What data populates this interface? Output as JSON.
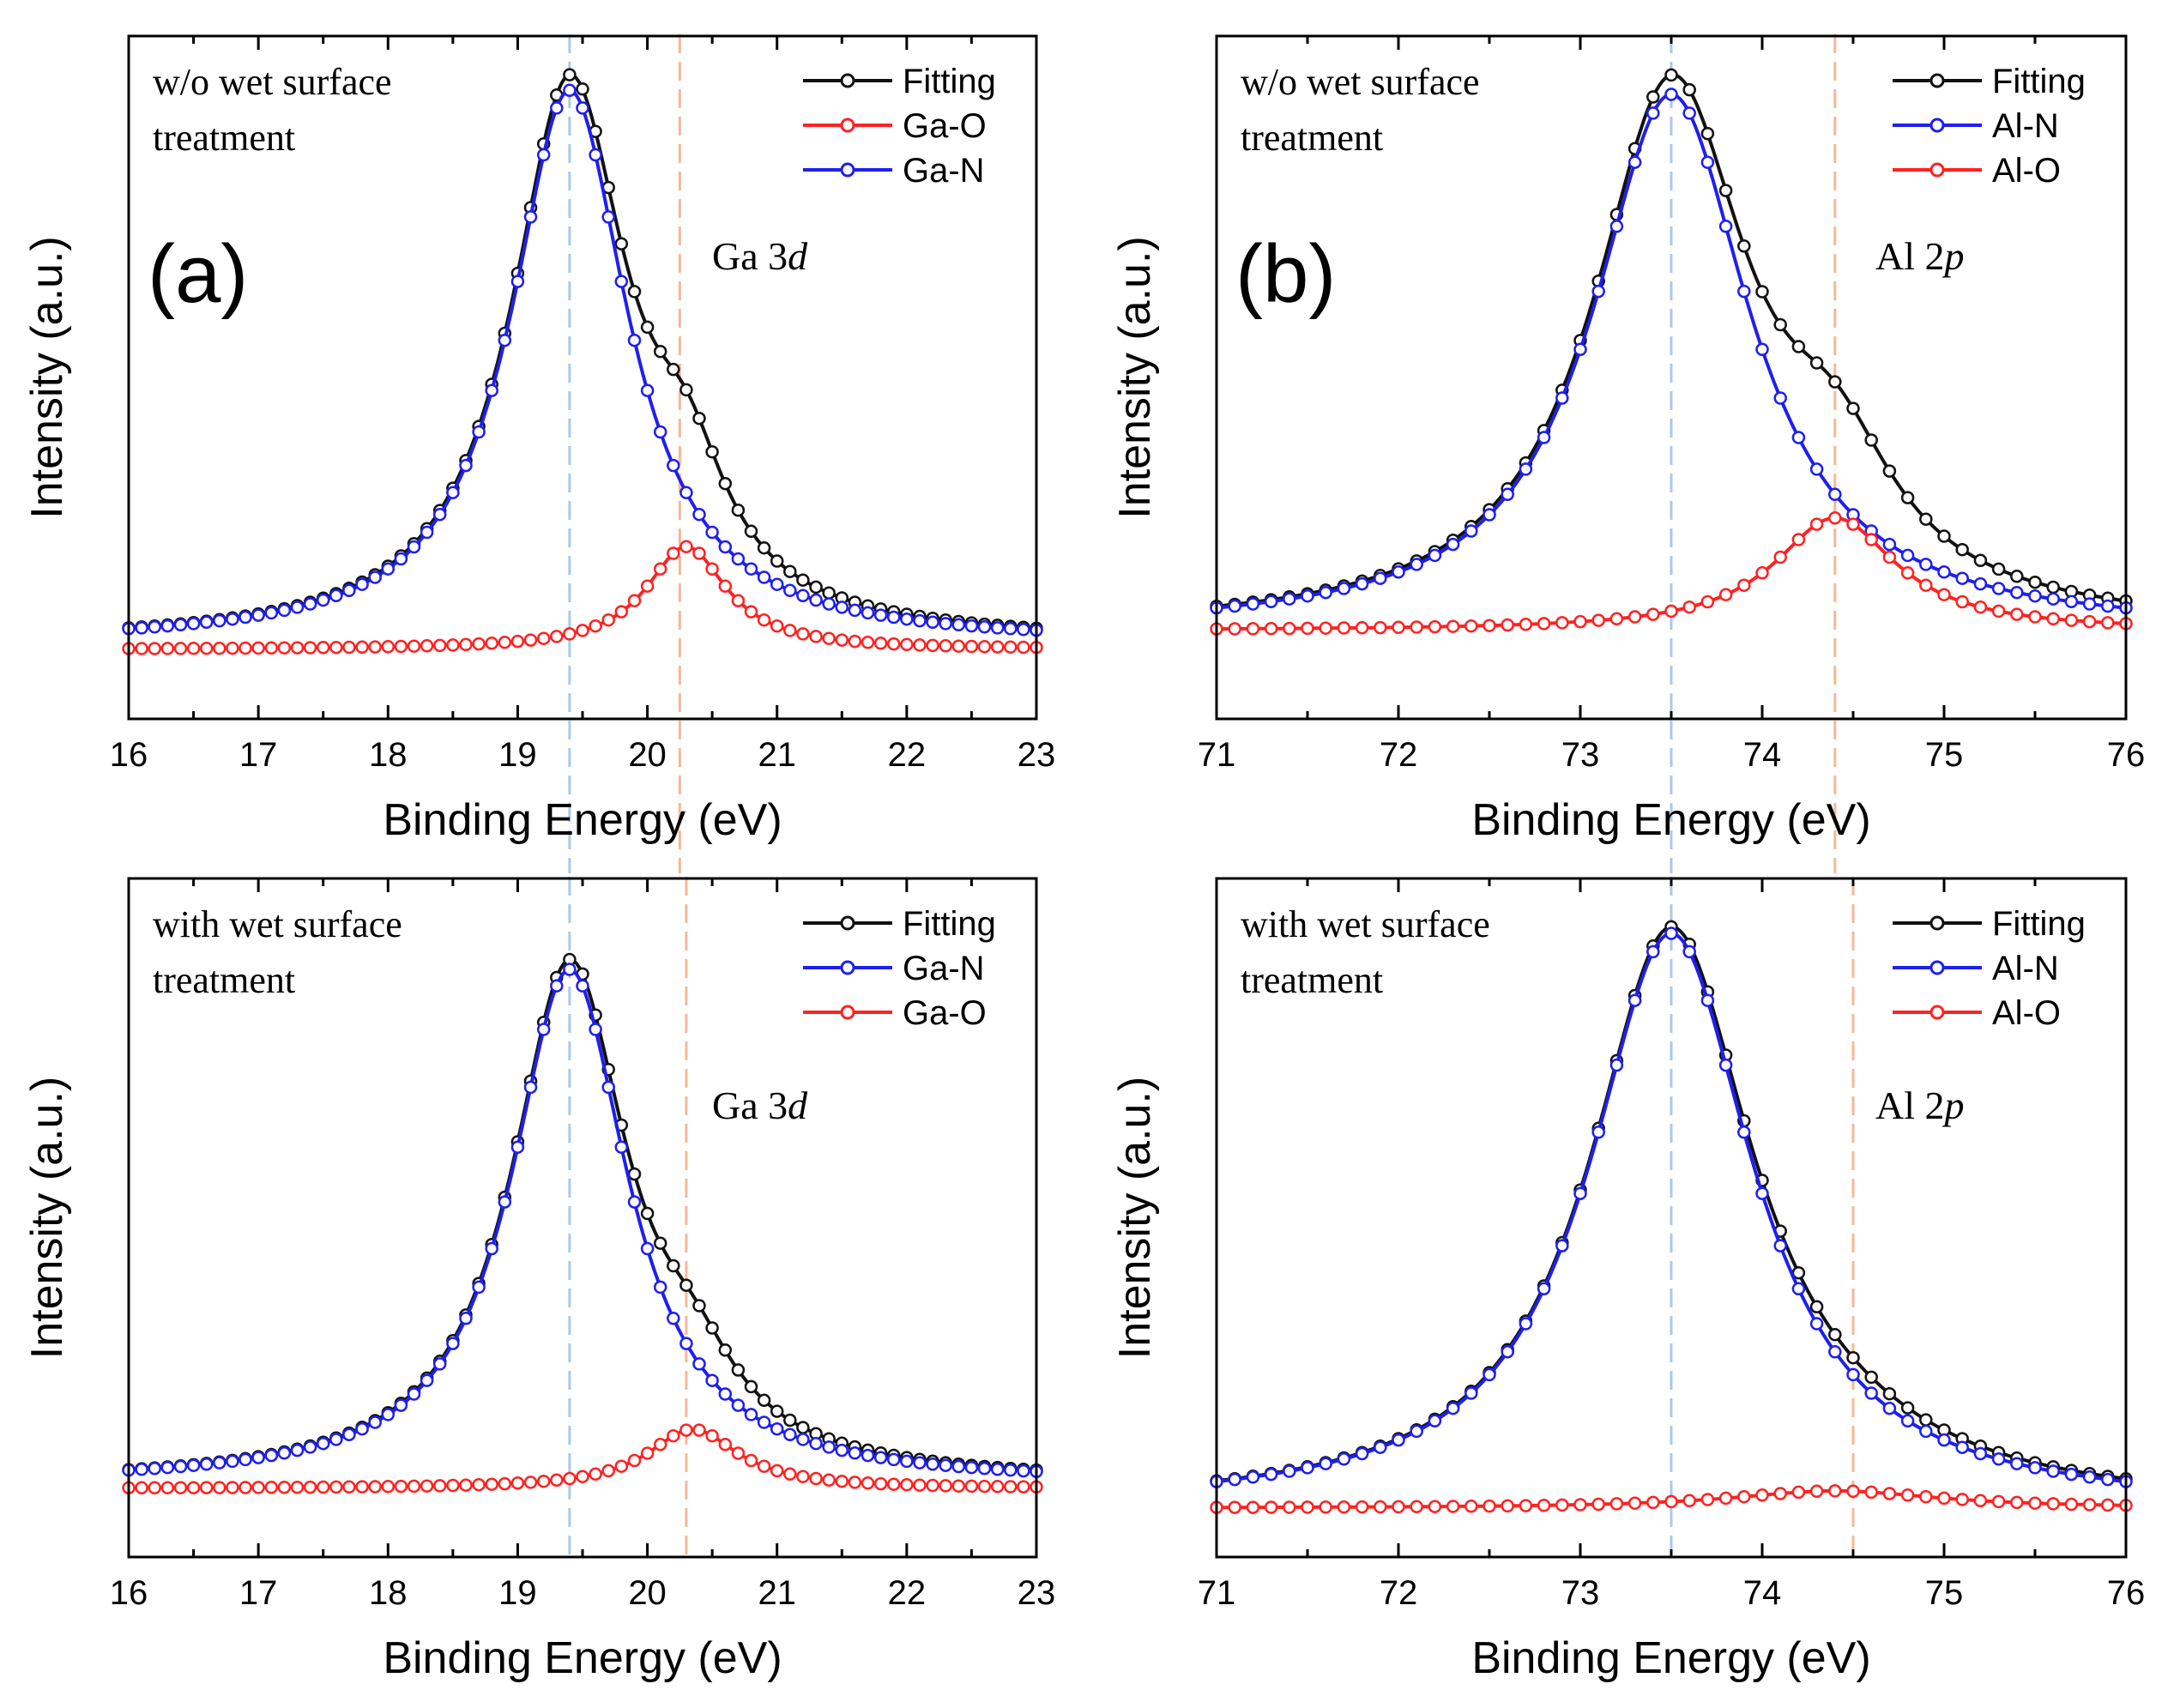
{
  "figure": {
    "x_axis_title": "Binding Energy (eV)",
    "y_axis_title": "Intensity (a.u.)"
  },
  "chart_data": [
    {
      "type": "line",
      "id": "ga-top",
      "panel_label": "(a)",
      "condition_lines": [
        "w/o wet surface",
        "treatment"
      ],
      "region_label": {
        "element": "Ga",
        "level": "3",
        "orbital": "d"
      },
      "xlabel": "Binding Energy (eV)",
      "ylabel": "Intensity (a.u.)",
      "xlim": [
        16,
        23
      ],
      "xticks": [
        "16",
        "17",
        "18",
        "19",
        "20",
        "21",
        "22",
        "23"
      ],
      "ylim": [
        0,
        1.15
      ],
      "yticks_shown": false,
      "legend_position": "top-right",
      "reference_lines": [
        {
          "x": 19.4,
          "color": "#a8c8ee"
        },
        {
          "x": 20.25,
          "color": "#f5b896"
        }
      ],
      "series": [
        {
          "name": "Fitting",
          "color": "#111111",
          "role": "sum",
          "legend_order": 0
        },
        {
          "name": "Ga-O",
          "color": "#ff2222",
          "center": 20.3,
          "amplitude": 0.186,
          "fwhm": 0.76,
          "baseline": 0.0,
          "legend_order": 1
        },
        {
          "name": "Ga-N",
          "color": "#1f1fee",
          "center": 19.4,
          "amplitude": 1.0,
          "fwhm": 1.1,
          "baseline": 0.012,
          "legend_order": 2
        }
      ]
    },
    {
      "type": "line",
      "id": "al-top",
      "panel_label": "(b)",
      "condition_lines": [
        "w/o wet surface",
        "treatment"
      ],
      "region_label": {
        "element": "Al",
        "level": "2",
        "orbital": "p"
      },
      "xlabel": "Binding Energy (eV)",
      "ylabel": "Intensity (a.u.)",
      "xlim": [
        71,
        76
      ],
      "xticks": [
        "71",
        "72",
        "73",
        "74",
        "75",
        "76"
      ],
      "ylim": [
        0,
        1.15
      ],
      "yticks_shown": false,
      "legend_position": "top-right",
      "reference_lines": [
        {
          "x": 73.5,
          "color": "#a8c8ee"
        },
        {
          "x": 74.4,
          "color": "#f5b896"
        }
      ],
      "series": [
        {
          "name": "Fitting",
          "color": "#111111",
          "role": "sum",
          "legend_order": 0
        },
        {
          "name": "Al-N",
          "color": "#1f1fee",
          "center": 73.5,
          "amplitude": 1.0,
          "fwhm": 1.05,
          "baseline": 0.0,
          "legend_order": 1
        },
        {
          "name": "Al-O",
          "color": "#ff2222",
          "center": 74.4,
          "amplitude": 0.21,
          "fwhm": 0.82,
          "baseline": 0.0,
          "legend_order": 2
        }
      ]
    },
    {
      "type": "line",
      "id": "ga-bottom",
      "panel_label": "",
      "condition_lines": [
        "with wet surface",
        "treatment"
      ],
      "region_label": {
        "element": "Ga",
        "level": "3",
        "orbital": "d"
      },
      "xlabel": "Binding Energy (eV)",
      "ylabel": "Intensity (a.u.)",
      "xlim": [
        16,
        23
      ],
      "xticks": [
        "16",
        "17",
        "18",
        "19",
        "20",
        "21",
        "22",
        "23"
      ],
      "ylim": [
        0,
        1.15
      ],
      "yticks_shown": false,
      "legend_position": "top-right",
      "reference_lines": [
        {
          "x": 19.4,
          "color": "#a8c8ee"
        },
        {
          "x": 20.3,
          "color": "#f5b896"
        }
      ],
      "series": [
        {
          "name": "Fitting",
          "color": "#111111",
          "role": "sum",
          "legend_order": 0
        },
        {
          "name": "Ga-N",
          "color": "#1f1fee",
          "center": 19.4,
          "amplitude": 1.0,
          "fwhm": 1.1,
          "baseline": 0.01,
          "legend_order": 1
        },
        {
          "name": "Ga-O",
          "color": "#ff2222",
          "center": 20.35,
          "amplitude": 0.115,
          "fwhm": 0.85,
          "baseline": 0.0,
          "legend_order": 2
        }
      ]
    },
    {
      "type": "line",
      "id": "al-bottom",
      "panel_label": "",
      "condition_lines": [
        "with wet surface",
        "treatment"
      ],
      "region_label": {
        "element": "Al",
        "level": "2",
        "orbital": "p"
      },
      "xlabel": "Binding Energy (eV)",
      "ylabel": "Intensity (a.u.)",
      "xlim": [
        71,
        76
      ],
      "xticks": [
        "71",
        "72",
        "73",
        "74",
        "75",
        "76"
      ],
      "ylim": [
        0,
        1.15
      ],
      "yticks_shown": false,
      "legend_position": "top-right",
      "reference_lines": [
        {
          "x": 73.5,
          "color": "#a8c8ee"
        },
        {
          "x": 74.5,
          "color": "#f5b896"
        }
      ],
      "series": [
        {
          "name": "Fitting",
          "color": "#111111",
          "role": "sum",
          "legend_order": 0
        },
        {
          "name": "Al-N",
          "color": "#1f1fee",
          "center": 73.5,
          "amplitude": 1.0,
          "fwhm": 1.1,
          "baseline": 0.0,
          "legend_order": 1
        },
        {
          "name": "Al-O",
          "color": "#ff2222",
          "center": 74.4,
          "amplitude": 0.03,
          "fwhm": 1.4,
          "baseline": 0.0,
          "legend_order": 2
        }
      ]
    }
  ]
}
